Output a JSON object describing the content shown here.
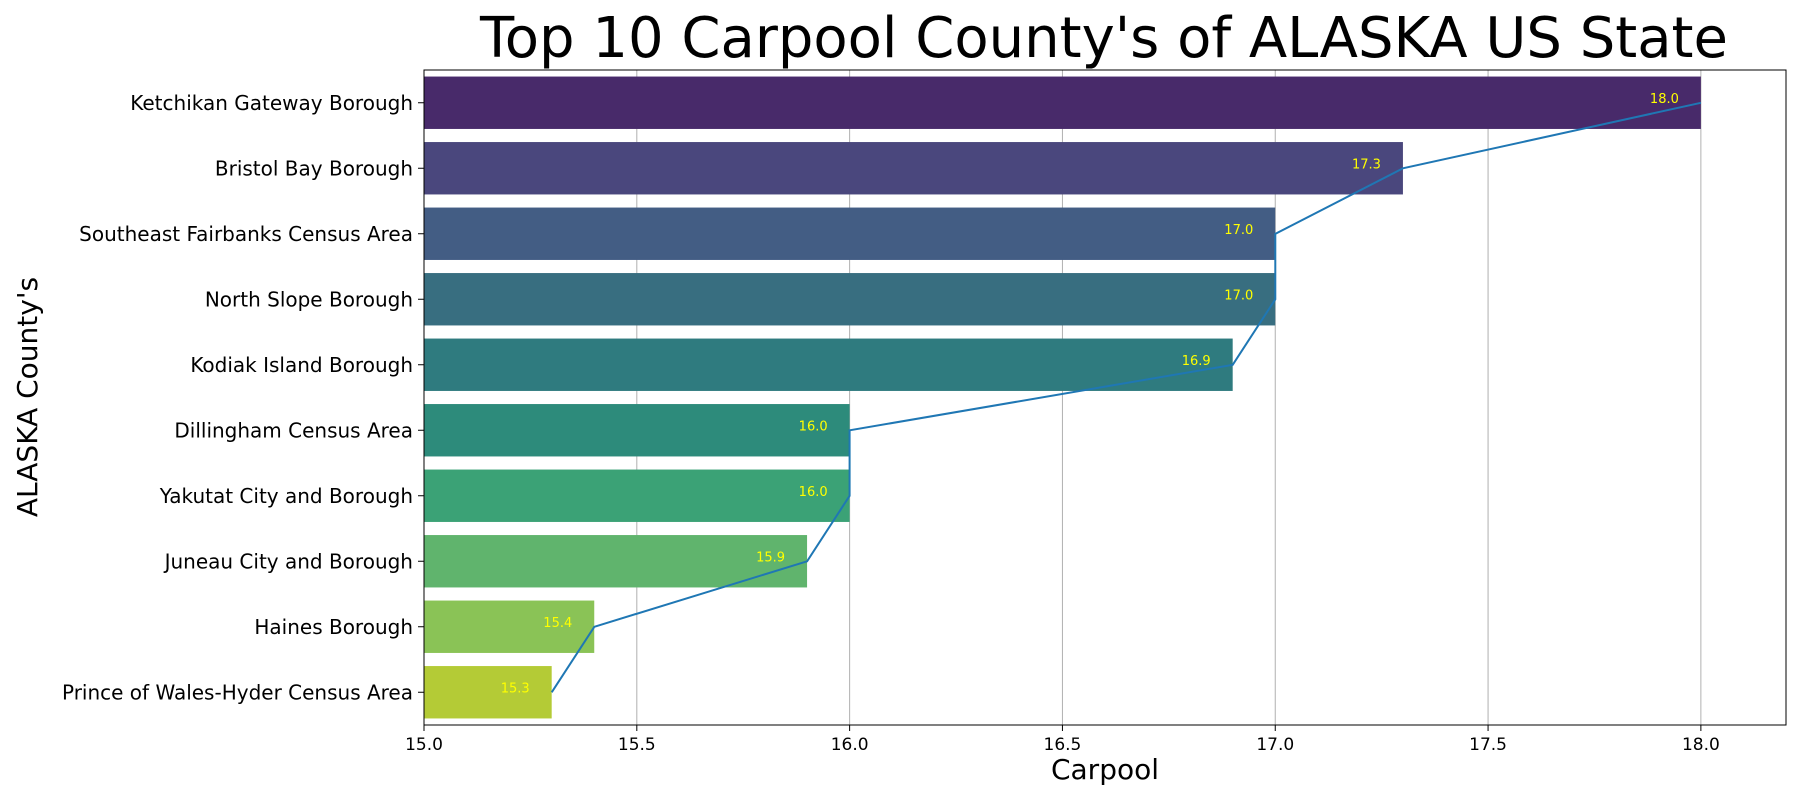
{
  "chart_data": {
    "type": "bar",
    "orientation": "horizontal",
    "title": "Top 10 Carpool County's of ALASKA US State",
    "xlabel": "Carpool",
    "ylabel": "ALASKA County's",
    "xlim": [
      15.0,
      18.2
    ],
    "xticks": [
      "15.0",
      "15.5",
      "16.0",
      "16.5",
      "17.0",
      "17.5",
      "18.0"
    ],
    "grid": "vertical",
    "categories": [
      "Ketchikan Gateway Borough",
      "Bristol Bay Borough",
      "Southeast Fairbanks Census Area",
      "North Slope Borough",
      "Kodiak Island Borough",
      "Dillingham Census Area",
      "Yakutat City and Borough",
      "Juneau City and Borough",
      "Haines Borough",
      "Prince of Wales-Hyder Census Area"
    ],
    "values": [
      18.0,
      17.3,
      17.0,
      17.0,
      16.9,
      16.0,
      16.0,
      15.9,
      15.4,
      15.3
    ],
    "value_labels": [
      "18.0",
      "17.3",
      "17.0",
      "17.0",
      "16.9",
      "16.0",
      "16.0",
      "15.9",
      "15.4",
      "15.3"
    ],
    "bar_colors": [
      "#482a6a",
      "#4a477d",
      "#435d84",
      "#386e80",
      "#2f7b7f",
      "#2d8b7b",
      "#3ba276",
      "#60b46d",
      "#8ac356",
      "#b4cb36"
    ],
    "line_color": "#1f77b4",
    "label_color": "#ffff00"
  }
}
